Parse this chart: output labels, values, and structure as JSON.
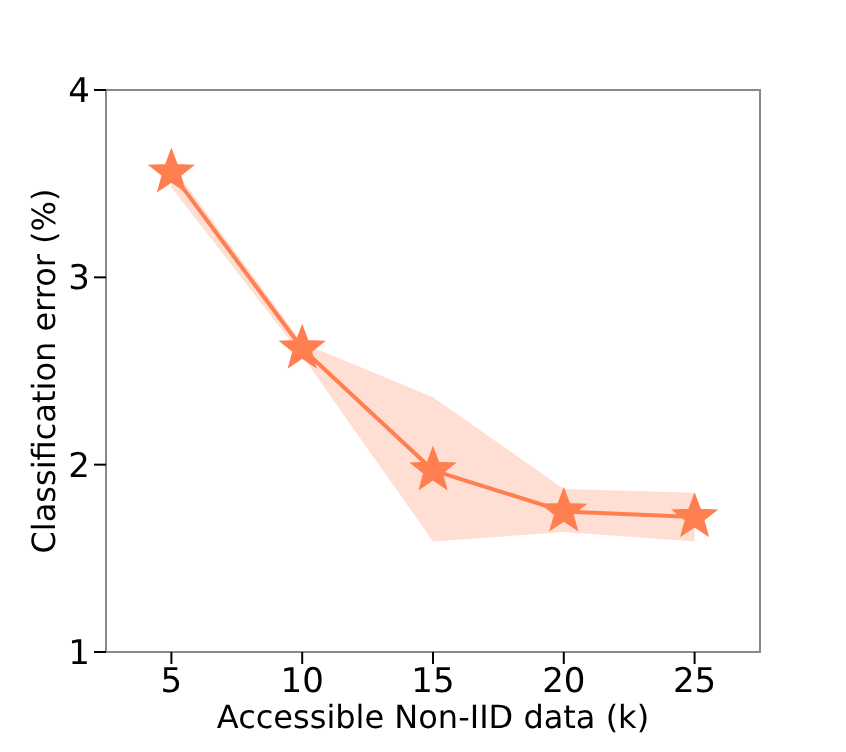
{
  "chart_data": {
    "type": "line",
    "xlabel": "Accessible Non-IID data (k)",
    "ylabel": "Classification error (%)",
    "x": [
      5,
      10,
      15,
      20,
      25
    ],
    "series": [
      {
        "color": "#ff7f50",
        "values": [
          3.56,
          2.62,
          1.97,
          1.75,
          1.72
        ],
        "lower": [
          3.48,
          2.58,
          1.59,
          1.64,
          1.59
        ],
        "upper": [
          3.6,
          2.65,
          2.36,
          1.87,
          1.85
        ]
      }
    ],
    "xlim": [
      2.5,
      27.5
    ],
    "xticks": [
      5,
      10,
      15,
      20,
      25
    ],
    "ylim": [
      1,
      4
    ],
    "yticks": [
      1,
      2,
      3,
      4
    ],
    "grid": false,
    "legend": false,
    "marker": "star",
    "line_style": "solid"
  }
}
